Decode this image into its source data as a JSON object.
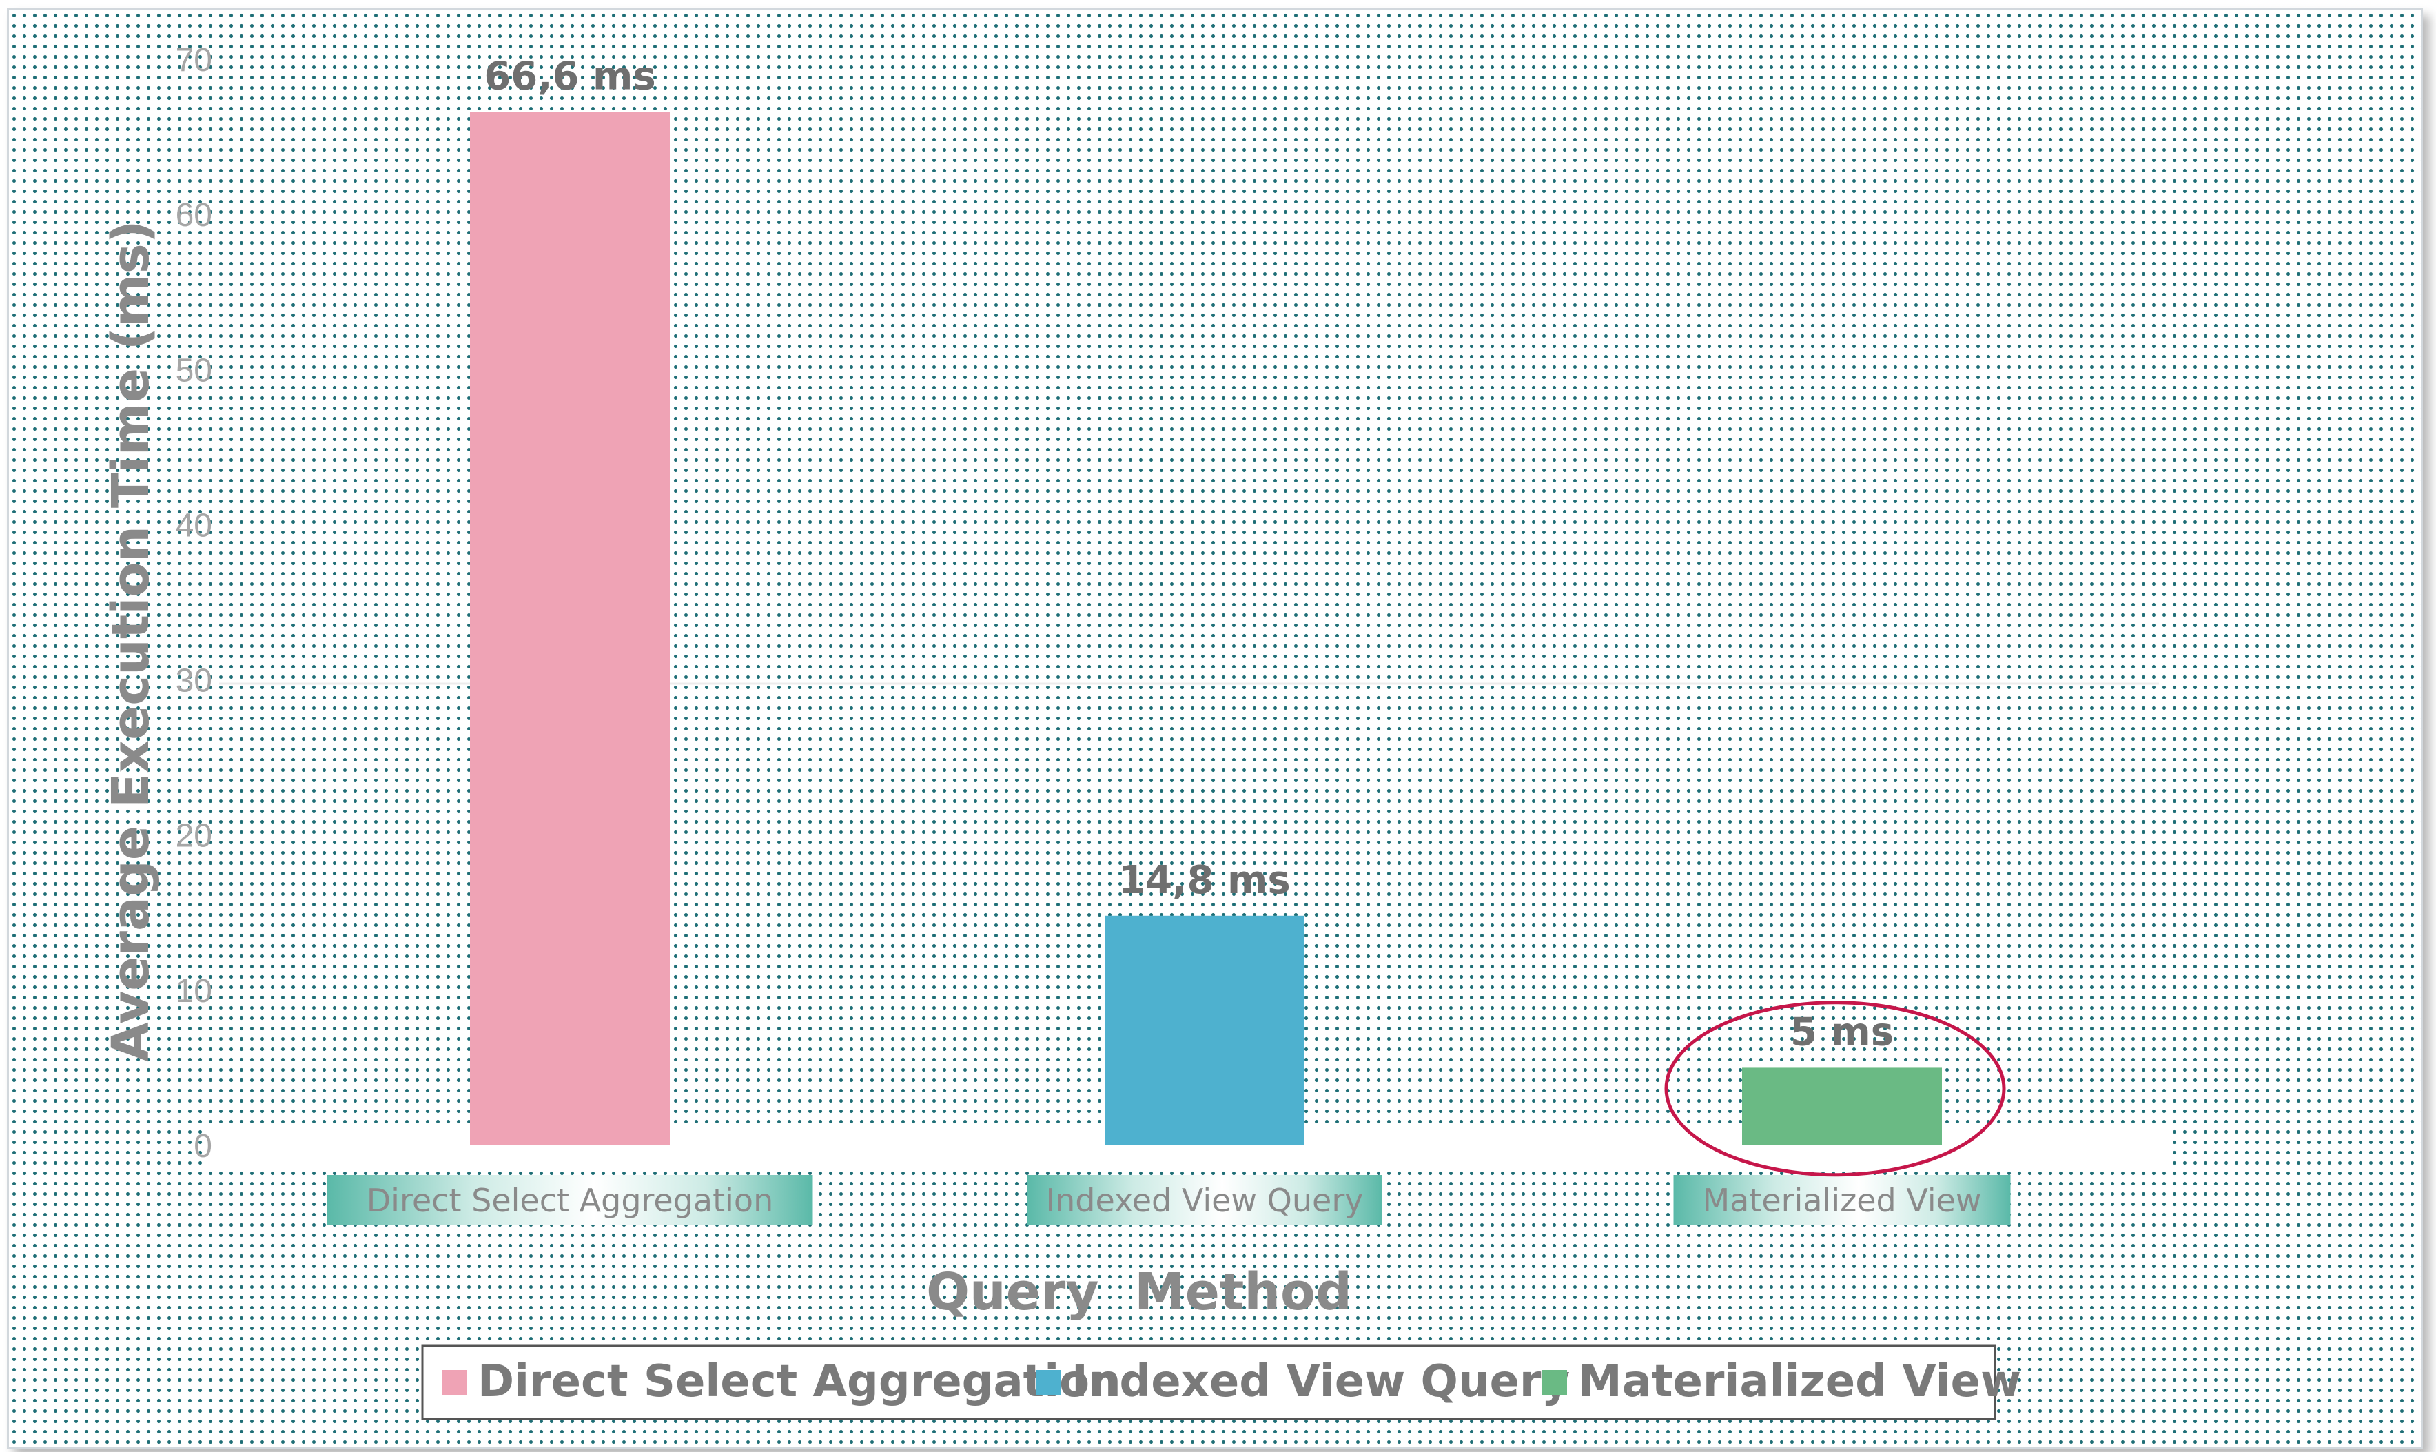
{
  "chart_data": {
    "type": "bar",
    "categories": [
      "Direct Select Aggregation",
      "Indexed View Query",
      "Materialized View"
    ],
    "values": [
      66.6,
      14.8,
      5
    ],
    "value_labels": [
      "66,6 ms",
      "14,8 ms",
      "5 ms"
    ],
    "colors": [
      "#efa3b5",
      "#4eb1cf",
      "#6aba84"
    ],
    "xlabel": "Query  Method",
    "ylabel": "Average Execution Time (ms)",
    "ylim": [
      0,
      70
    ],
    "yticks": [
      0,
      10,
      20,
      30,
      40,
      50,
      60,
      70
    ],
    "legend": {
      "placement": "bottom",
      "entries": [
        "Direct Select Aggregation",
        "Indexed View Query",
        "Materialized View"
      ]
    },
    "highlight": {
      "category": "Materialized View",
      "color": "#c6164a"
    },
    "grid": false
  }
}
